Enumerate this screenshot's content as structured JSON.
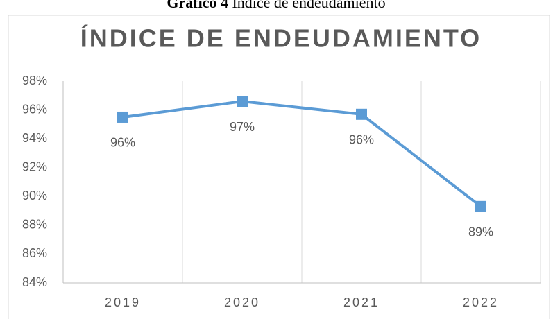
{
  "caption": {
    "label": "Gráfico 4",
    "text": "Índice de endeudamiento"
  },
  "chart_data": {
    "type": "line",
    "title": "ÍNDICE DE ENDEUDAMIENTO",
    "categories": [
      "2019",
      "2020",
      "2021",
      "2022"
    ],
    "series": [
      {
        "name": "Índice de endeudamiento",
        "color": "#5b9bd5",
        "values": [
          95.5,
          96.6,
          95.7,
          89.3
        ],
        "value_labels": [
          "96%",
          "97%",
          "96%",
          "89%"
        ]
      }
    ],
    "ylim": [
      84,
      98
    ],
    "yticks": [
      {
        "value": 84,
        "label": "84%"
      },
      {
        "value": 86,
        "label": "86%"
      },
      {
        "value": 88,
        "label": "88%"
      },
      {
        "value": 90,
        "label": "90%"
      },
      {
        "value": 92,
        "label": "92%"
      },
      {
        "value": 94,
        "label": "94%"
      },
      {
        "value": 96,
        "label": "96%"
      },
      {
        "value": 98,
        "label": "98%"
      }
    ],
    "grid": true
  }
}
